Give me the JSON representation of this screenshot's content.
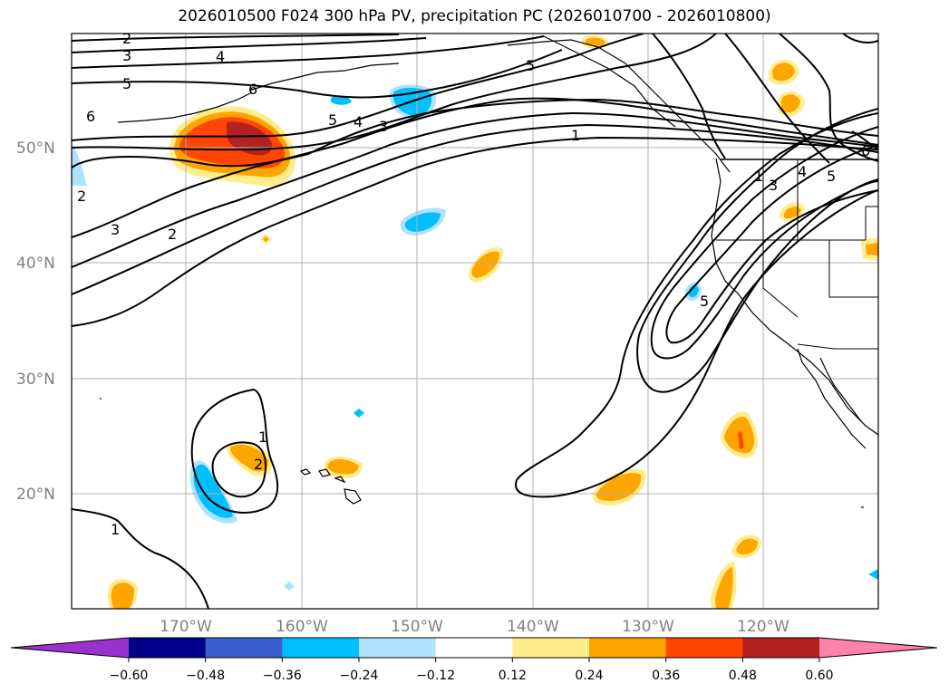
{
  "title": "2026010500 F024 300 hPa PV, precipitation PC (2026010700 - 2026010800)",
  "lat_labels": [
    "50°N",
    "40°N",
    "30°N",
    "20°N"
  ],
  "lon_labels": [
    "170°W",
    "160°W",
    "150°W",
    "140°W",
    "130°W",
    "120°W"
  ],
  "colorbar": {
    "colors": [
      "#9932cc",
      "#00008b",
      "#3a5fcd",
      "#00bfff",
      "#b0e2ff",
      "#ffffff",
      "#ffec8b",
      "#ffa500",
      "#ff4500",
      "#b22222",
      "#ff82ab"
    ],
    "tick_labels": [
      "−0.60",
      "−0.48",
      "−0.36",
      "−0.24",
      "−0.12",
      "0.12",
      "0.24",
      "0.36",
      "0.48",
      "0.60"
    ]
  },
  "contour_labels": [
    "2",
    "3",
    "4",
    "5",
    "6",
    "6",
    "5",
    "4",
    "3",
    "2",
    "3",
    "2",
    "1",
    "5",
    "1",
    "3",
    "5",
    "6",
    "4",
    "5",
    "1",
    "2",
    "1"
  ]
}
